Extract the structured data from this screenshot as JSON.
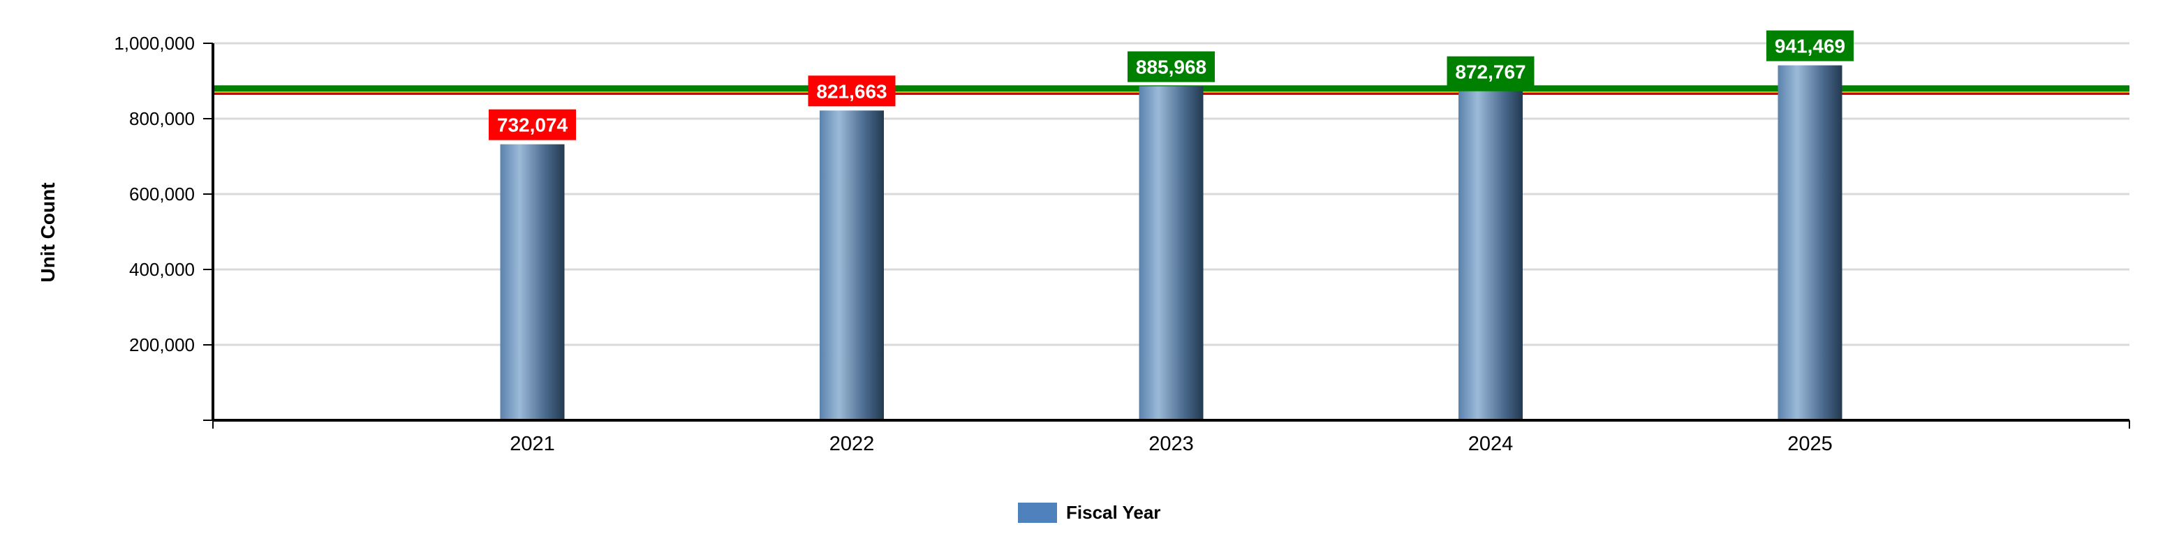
{
  "chart_data": {
    "type": "bar",
    "categories": [
      "2021",
      "2022",
      "2023",
      "2024",
      "2025"
    ],
    "series": [
      {
        "name": "Fiscal Year",
        "values": [
          732074,
          821663,
          885968,
          872767,
          941469
        ]
      }
    ],
    "data_labels": [
      "732,074",
      "821,663",
      "885,968",
      "872,767",
      "941,469"
    ],
    "label_colors": [
      "#ff0000",
      "#ff0000",
      "#008000",
      "#008000",
      "#008000"
    ],
    "bar_color": "#4f81bd",
    "reference_lines": [
      {
        "value": 880000,
        "color": "#008000"
      },
      {
        "value": 868000,
        "color": "#ffa500"
      },
      {
        "value": 866000,
        "color": "#c00000"
      }
    ],
    "title": "",
    "xlabel": "",
    "ylabel": "Unit Count",
    "ylim": [
      0,
      1000000
    ],
    "y_ticks": [
      200000,
      400000,
      600000,
      800000,
      1000000
    ],
    "y_tick_labels": [
      "200,000",
      "400,000",
      "600,000",
      "800,000",
      "1,000,000"
    ],
    "grid": true,
    "legend_position": "bottom-center"
  }
}
